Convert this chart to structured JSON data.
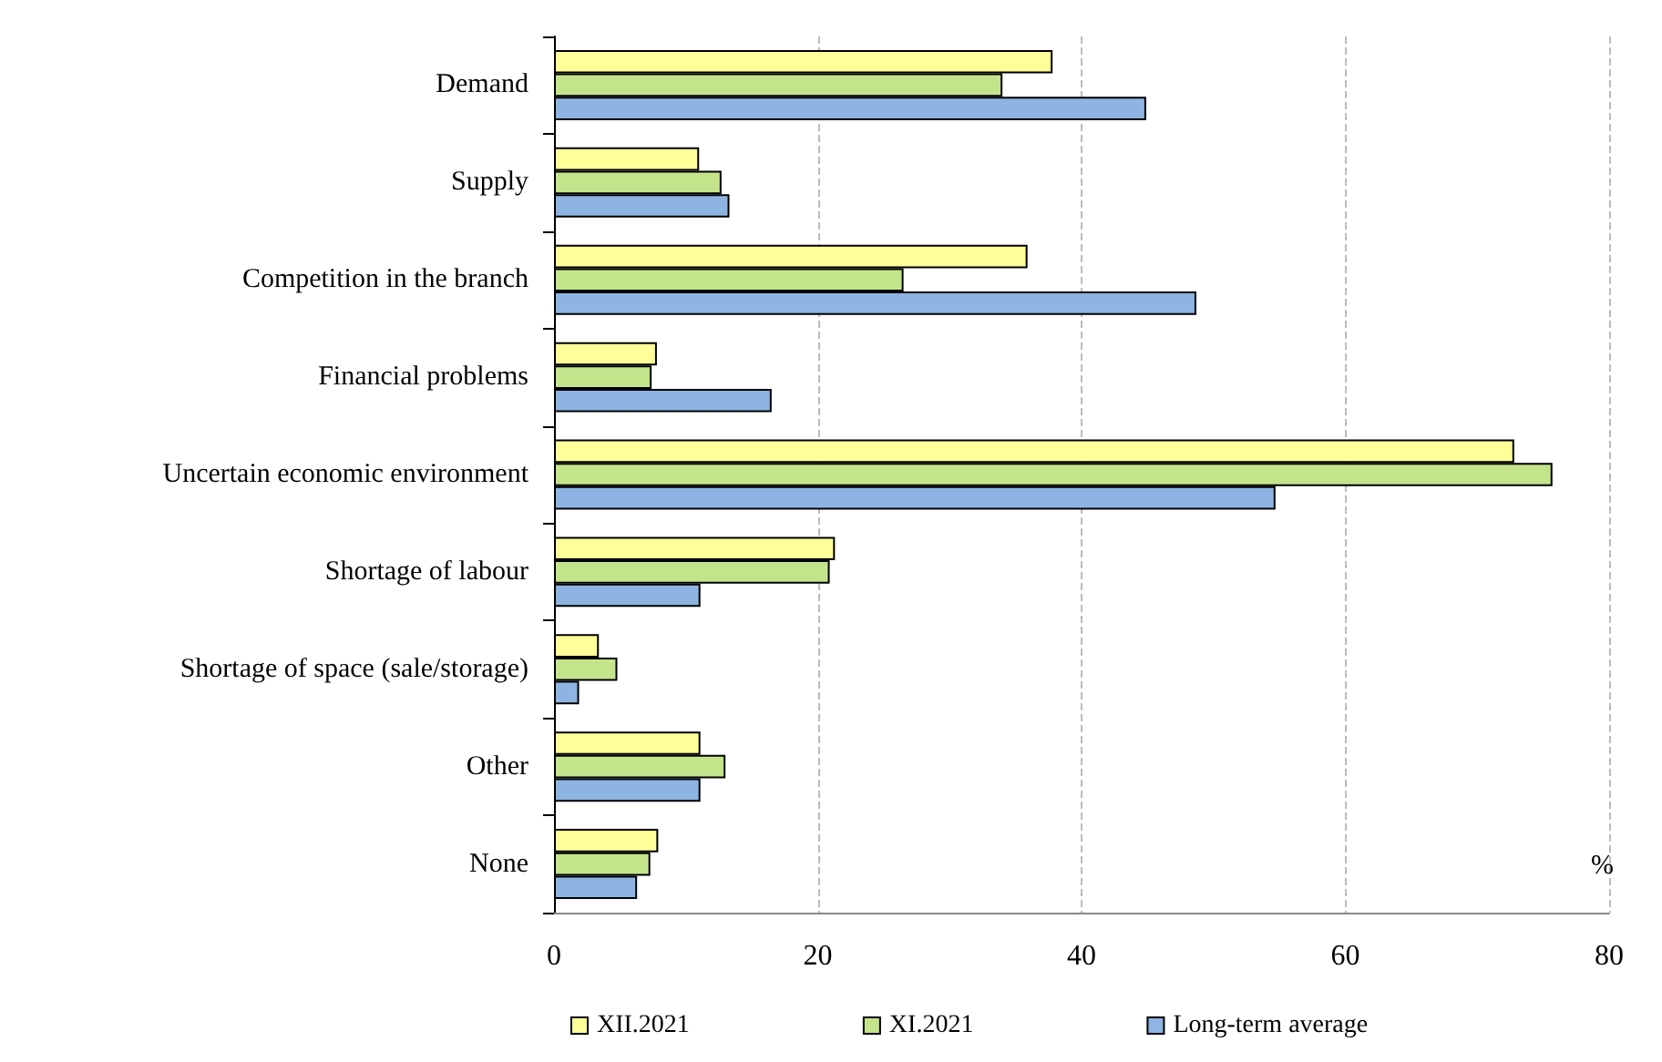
{
  "chart_data": {
    "type": "bar",
    "orientation": "horizontal",
    "xlabel": "%",
    "categories": [
      "Demand",
      "Supply",
      "Competition in the branch",
      "Financial problems",
      "Uncertain economic environment",
      "Shortage of labour",
      "Shortage of space (sale/storage)",
      "Other",
      "None"
    ],
    "series": [
      {
        "name": "XII.2021",
        "color": "#ffff99",
        "values": [
          37.8,
          11.0,
          35.9,
          7.8,
          72.8,
          21.3,
          3.4,
          11.1,
          7.9
        ]
      },
      {
        "name": "XI.2021",
        "color": "#c4e48c",
        "values": [
          34.0,
          12.7,
          26.5,
          7.4,
          75.7,
          20.9,
          4.8,
          13.0,
          7.3
        ]
      },
      {
        "name": "Long-term average",
        "color": "#8db4e2",
        "values": [
          44.9,
          13.3,
          48.7,
          16.5,
          54.7,
          11.1,
          1.9,
          11.1,
          6.3
        ]
      }
    ],
    "xlim": [
      0,
      80
    ],
    "xticks": [
      0,
      20,
      40,
      60,
      80
    ],
    "grid": "x",
    "legend": "bottom"
  }
}
